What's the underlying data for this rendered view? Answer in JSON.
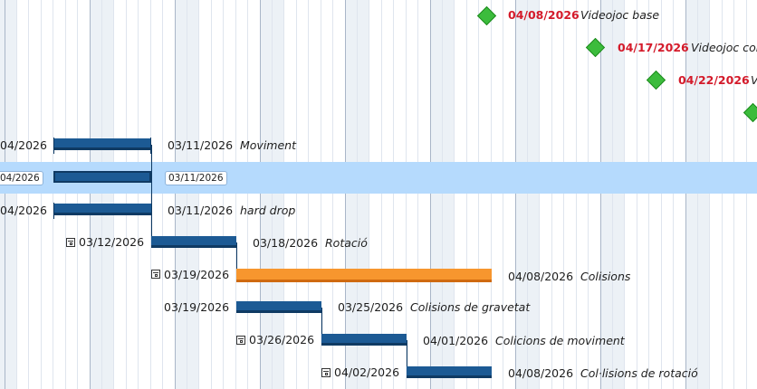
{
  "gantt": {
    "milestones": [
      {
        "date": "04/08/2026",
        "name": "Videojoc base"
      },
      {
        "date": "04/17/2026",
        "name": "Videojoc conn"
      },
      {
        "date": "04/22/2026",
        "name": "V"
      },
      {
        "date": "",
        "name": ""
      }
    ],
    "tasks": [
      {
        "start": "04/2026",
        "end": "03/11/2026",
        "name": "Moviment"
      },
      {
        "start": "04/2026",
        "end": "03/11/2026",
        "name": ""
      },
      {
        "start": "04/2026",
        "end": "03/11/2026",
        "name": "hard drop"
      },
      {
        "start": "03/12/2026",
        "end": "03/18/2026",
        "name": "Rotació"
      },
      {
        "start": "03/19/2026",
        "end": "04/08/2026",
        "name": "Colisions"
      },
      {
        "start": "03/19/2026",
        "end": "03/25/2026",
        "name": "Colisions de gravetat"
      },
      {
        "start": "03/26/2026",
        "end": "04/01/2026",
        "name": "Colicions de moviment"
      },
      {
        "start": "04/02/2026",
        "end": "04/08/2026",
        "name": "Col·lisions de rotació"
      }
    ],
    "colors": {
      "task_bar": "#1c5a94",
      "summary_bar": "#f7962e",
      "milestone": "#3cbc3c",
      "milestone_date": "#d41a2a",
      "row_highlight": "#b5dafd"
    }
  }
}
